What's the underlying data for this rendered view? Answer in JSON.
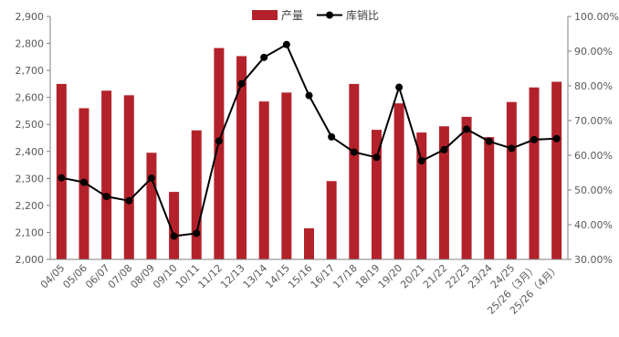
{
  "chart_data": {
    "type": "bar",
    "categories": [
      "04/05",
      "05/06",
      "06/07",
      "07/08",
      "08/09",
      "09/10",
      "10/11",
      "11/12",
      "12/13",
      "13/14",
      "14/15",
      "15/16",
      "16/17",
      "17/18",
      "18/19",
      "19/20",
      "20/21",
      "21/22",
      "22/23",
      "23/24",
      "24/25",
      "25/26（3月）",
      "25/26（4月）"
    ],
    "series": [
      {
        "name": "产量",
        "type": "bar",
        "axis": "left",
        "color": "#b3222b",
        "values": [
          2650,
          2560,
          2625,
          2608,
          2395,
          2250,
          2478,
          2783,
          2753,
          2585,
          2618,
          2115,
          2290,
          2650,
          2480,
          2578,
          2470,
          2493,
          2528,
          2453,
          2583,
          2637,
          2658
        ]
      },
      {
        "name": "库销比",
        "type": "line",
        "axis": "right",
        "color": "#000000",
        "values": [
          0.535,
          0.522,
          0.481,
          0.469,
          0.534,
          0.367,
          0.375,
          0.641,
          0.806,
          0.882,
          0.919,
          0.772,
          0.653,
          0.609,
          0.594,
          0.796,
          0.584,
          0.616,
          0.675,
          0.64,
          0.62,
          0.645,
          0.648
        ]
      }
    ],
    "y_left": {
      "min": 2000,
      "max": 2900,
      "step": 100,
      "ticks": [
        "2,000",
        "2,100",
        "2,200",
        "2,300",
        "2,400",
        "2,500",
        "2,600",
        "2,700",
        "2,800",
        "2,900"
      ]
    },
    "y_right": {
      "min": 0.3,
      "max": 1.0,
      "step": 0.1,
      "ticks": [
        "30.00%",
        "40.00%",
        "50.00%",
        "60.00%",
        "70.00%",
        "80.00%",
        "90.00%",
        "100.00%"
      ]
    },
    "xlabel": "",
    "ylabel": "",
    "grid": false,
    "legend_position": "top-center"
  }
}
